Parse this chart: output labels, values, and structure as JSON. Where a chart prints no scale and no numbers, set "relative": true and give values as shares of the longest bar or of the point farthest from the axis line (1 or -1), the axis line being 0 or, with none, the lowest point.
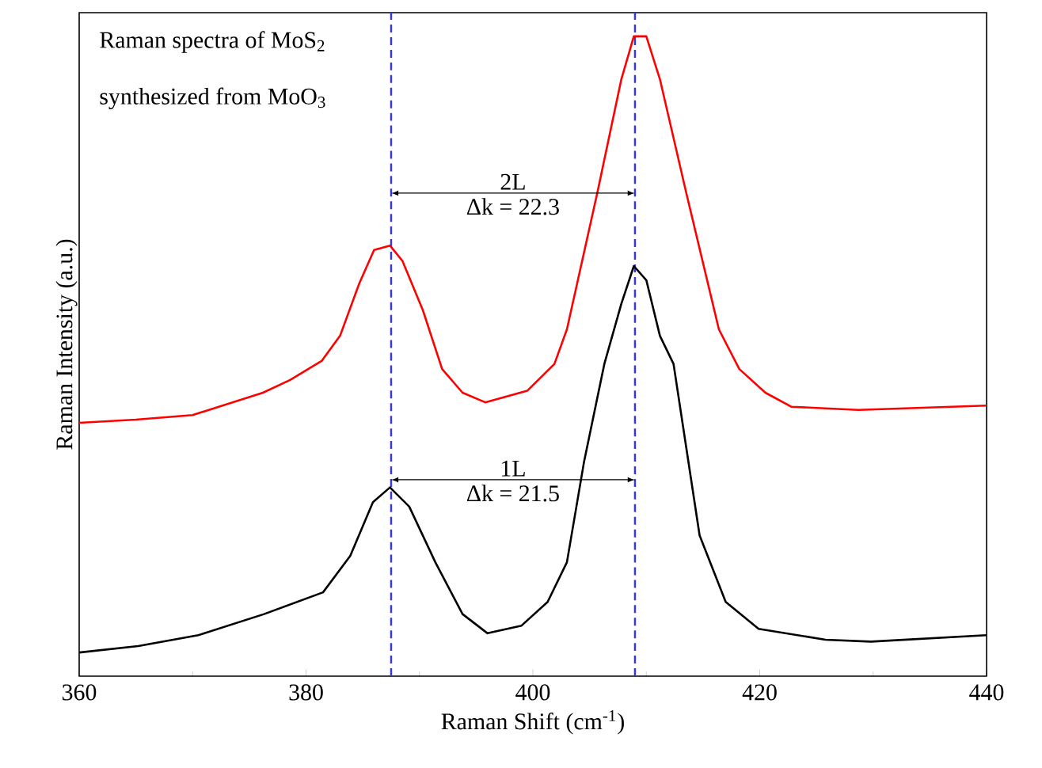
{
  "chart_data": {
    "type": "line",
    "relative": true,
    "xlabel": "Raman Shift (cm$^{-1}$)",
    "ylabel": "Raman Intensity (a.u.)",
    "xlim": [
      360,
      440
    ],
    "xticks": [
      360,
      380,
      400,
      420,
      440
    ],
    "line_style": "solid",
    "series": [
      {
        "color": "#ff0000",
        "x": [
          360,
          365,
          370,
          376.2,
          378.6,
          381.4,
          383,
          384.7,
          386,
          387.4,
          388.5,
          390.3,
          392,
          393.8,
          395.8,
          399.5,
          401.9,
          403,
          405.7,
          407.8,
          408.9,
          410,
          411.2,
          413.5,
          416.4,
          418.2,
          420.5,
          422.8,
          428.7,
          440
        ],
        "values": [
          0.396,
          0.401,
          0.408,
          0.443,
          0.463,
          0.493,
          0.532,
          0.614,
          0.666,
          0.673,
          0.649,
          0.572,
          0.48,
          0.443,
          0.428,
          0.446,
          0.488,
          0.542,
          0.757,
          0.933,
          1,
          1,
          0.933,
          0.757,
          0.542,
          0.48,
          0.443,
          0.421,
          0.416,
          0.423
        ]
      },
      {
        "color": "#000000",
        "x": [
          360,
          365.2,
          370.5,
          376.3,
          381.5,
          383.9,
          385.9,
          387.4,
          389.1,
          391.4,
          393.8,
          396,
          399,
          401.3,
          403,
          404.5,
          406.3,
          407.8,
          408.9,
          410,
          411.2,
          412.4,
          414.7,
          417,
          419.9,
          425.8,
          429.8,
          440
        ],
        "values": [
          0.037,
          0.047,
          0.064,
          0.097,
          0.131,
          0.188,
          0.272,
          0.295,
          0.265,
          0.178,
          0.097,
          0.067,
          0.079,
          0.116,
          0.178,
          0.334,
          0.488,
          0.582,
          0.641,
          0.619,
          0.532,
          0.488,
          0.22,
          0.116,
          0.074,
          0.057,
          0.054,
          0.064
        ]
      }
    ],
    "ref_lines": [
      {
        "axis": "x",
        "value": 387.5,
        "color": "#3333ff",
        "line_style": "dashed"
      },
      {
        "axis": "x",
        "value": 409,
        "color": "#3333ff",
        "line_style": "dashed"
      }
    ],
    "annotations": [
      "Raman spectra of MoS$_{2}$",
      "synthesized from MoO$_{3}$",
      "2L",
      "Δk = 22.3",
      "1L",
      "Δk = 21.5"
    ]
  }
}
